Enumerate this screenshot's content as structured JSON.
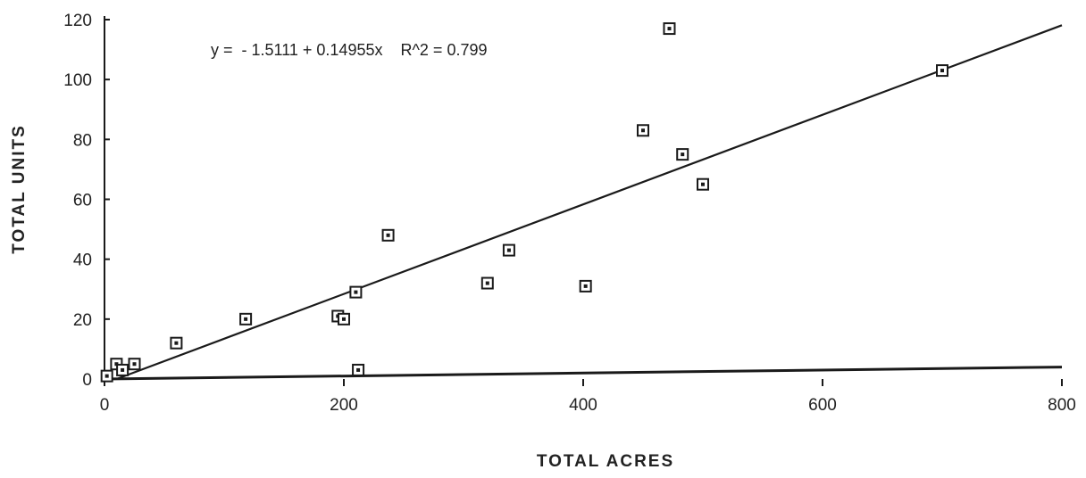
{
  "chart_data": {
    "type": "scatter",
    "title": "",
    "xlabel": "TOTAL ACRES",
    "ylabel": "TOTAL UNITS",
    "xlim": [
      0,
      800
    ],
    "ylim": [
      0,
      120
    ],
    "x_ticks": [
      0,
      200,
      400,
      600,
      800
    ],
    "x_tick_labels": [
      "0",
      "200",
      "400",
      "600",
      "800"
    ],
    "y_ticks": [
      0,
      20,
      40,
      60,
      80,
      100,
      120
    ],
    "y_tick_labels": [
      "0",
      "20",
      "40",
      "60",
      "80",
      "100",
      "120"
    ],
    "grid": false,
    "legend": "none",
    "annotation": "y =  - 1.5111 + 0.14955x    R^2 = 0.799",
    "trendline": {
      "intercept": -1.5111,
      "slope": 0.14955
    },
    "baseline": {
      "x": [
        0,
        800
      ],
      "y": [
        0,
        4
      ]
    },
    "points": [
      {
        "x": 2,
        "y": 1
      },
      {
        "x": 10,
        "y": 5
      },
      {
        "x": 15,
        "y": 3
      },
      {
        "x": 25,
        "y": 5
      },
      {
        "x": 60,
        "y": 12
      },
      {
        "x": 118,
        "y": 20
      },
      {
        "x": 195,
        "y": 21
      },
      {
        "x": 200,
        "y": 20
      },
      {
        "x": 210,
        "y": 29
      },
      {
        "x": 212,
        "y": 3
      },
      {
        "x": 237,
        "y": 48
      },
      {
        "x": 320,
        "y": 32
      },
      {
        "x": 338,
        "y": 43
      },
      {
        "x": 402,
        "y": 31
      },
      {
        "x": 450,
        "y": 83
      },
      {
        "x": 472,
        "y": 117
      },
      {
        "x": 483,
        "y": 75
      },
      {
        "x": 500,
        "y": 65
      },
      {
        "x": 700,
        "y": 103
      }
    ],
    "colors": {
      "ink": "#1a1a1a",
      "background": "#ffffff"
    }
  }
}
